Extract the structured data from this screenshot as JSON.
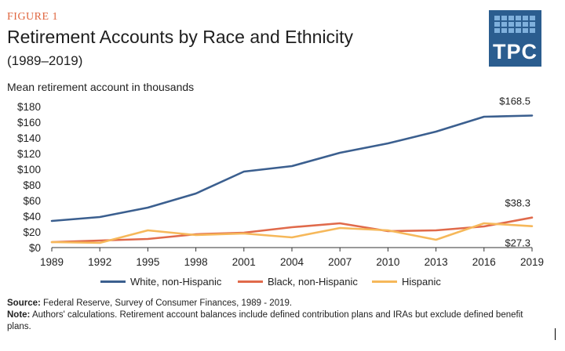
{
  "figure": {
    "label": "FIGURE 1",
    "title": "Retirement Accounts by Race and Ethnicity",
    "subtitle": "(1989–2019)",
    "units_label": "Mean retirement account in thousands"
  },
  "logo": {
    "text": "TPC",
    "bg_color": "#2b5d8f",
    "grid_color": "#7fb0dc"
  },
  "chart_data": {
    "type": "line",
    "x": [
      1989,
      1992,
      1995,
      1998,
      2001,
      2004,
      2007,
      2010,
      2013,
      2016,
      2019
    ],
    "x_tick_labels": [
      "1989",
      "1992",
      "1995",
      "1998",
      "2001",
      "2004",
      "2007",
      "2010",
      "2013",
      "2016",
      "2019"
    ],
    "ylim": [
      0,
      180
    ],
    "y_ticks": [
      0,
      20,
      40,
      60,
      80,
      100,
      120,
      140,
      160,
      180
    ],
    "y_tick_labels": [
      "$0",
      "$20",
      "$40",
      "$60",
      "$80",
      "$100",
      "$120",
      "$140",
      "$160",
      "$180"
    ],
    "grid": false,
    "legend_position": "bottom",
    "series": [
      {
        "name": "White, non-Hispanic",
        "color": "#3b5f8f",
        "values": [
          34,
          39,
          51,
          69,
          97,
          104,
          121,
          133,
          148,
          167,
          168.5
        ],
        "end_label": "$168.5"
      },
      {
        "name": "Black, non-Hispanic",
        "color": "#e06a4b",
        "values": [
          7,
          9,
          11,
          17,
          19,
          26,
          31,
          21,
          22,
          27,
          38.3
        ],
        "end_label": "$38.3"
      },
      {
        "name": "Hispanic",
        "color": "#f6b85a",
        "values": [
          7,
          6,
          22,
          16,
          18,
          13,
          25,
          22,
          10,
          31,
          27.3
        ],
        "end_label": "$27.3"
      }
    ]
  },
  "notes": {
    "source_label": "Source:",
    "source_text": " Federal Reserve, Survey of Consumer Finances, 1989 - 2019.",
    "note_label": "Note:",
    "note_text": " Authors' calculations. Retirement account balances include defined contribution plans and IRAs but exclude defined benefit plans."
  }
}
